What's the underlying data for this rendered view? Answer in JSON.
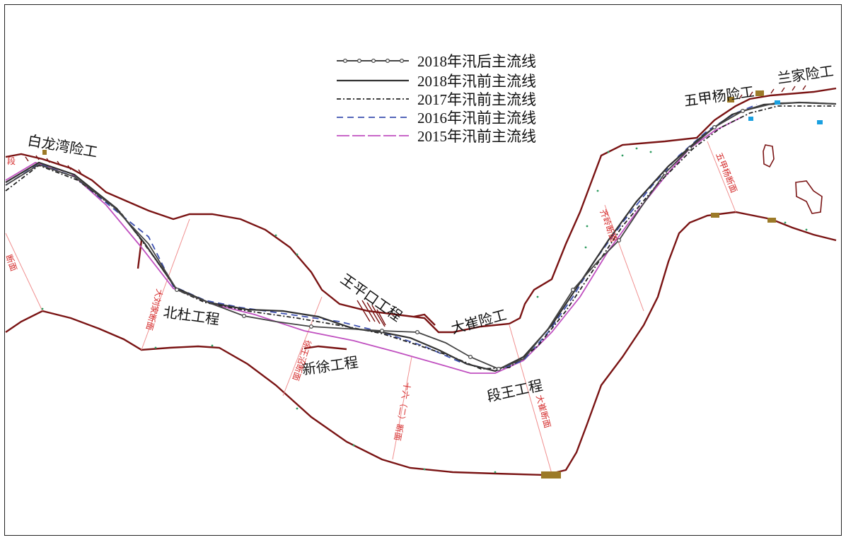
{
  "colors": {
    "levee": "#7a1414",
    "section_line": "#f08f8f",
    "section_text": "#d42a2a",
    "vegetation": "#2e9c60",
    "flow_2018_after": "#444444",
    "flow_2018_before": "#333333",
    "flow_2017_before": "#222222",
    "flow_2016_before": "#3d50b0",
    "flow_2015_before": "#c050c0",
    "gate": "#9c7a28",
    "water": "#1aa0e0"
  },
  "legend": [
    {
      "label": "2018年汛后主流线",
      "style": "line-with-circles"
    },
    {
      "label": "2018年汛前主流线",
      "style": "solid"
    },
    {
      "label": "2017年汛前主流线",
      "style": "dash-dot"
    },
    {
      "label": "2016年汛前主流线",
      "style": "dashed"
    },
    {
      "label": "2015年汛前主流线",
      "style": "long-dash"
    }
  ],
  "places": {
    "bailongwan": "白龙湾险工",
    "beidu": "北杜工程",
    "wangpingkou": "王平口工程",
    "xinxu": "新徐工程",
    "dacui": "大崔险工",
    "duanwang": "段王工程",
    "wujiayang": "五甲杨险工",
    "lanjia": "兰家险工"
  },
  "sections": {
    "s1": "断面",
    "s2": "大刘家断面",
    "s3": "徐王沼断面",
    "s4": "十六（二）断面",
    "s5": "大崔断面",
    "s6": "齐岭断面",
    "s7": "五甲杨断面",
    "s8": "段"
  }
}
